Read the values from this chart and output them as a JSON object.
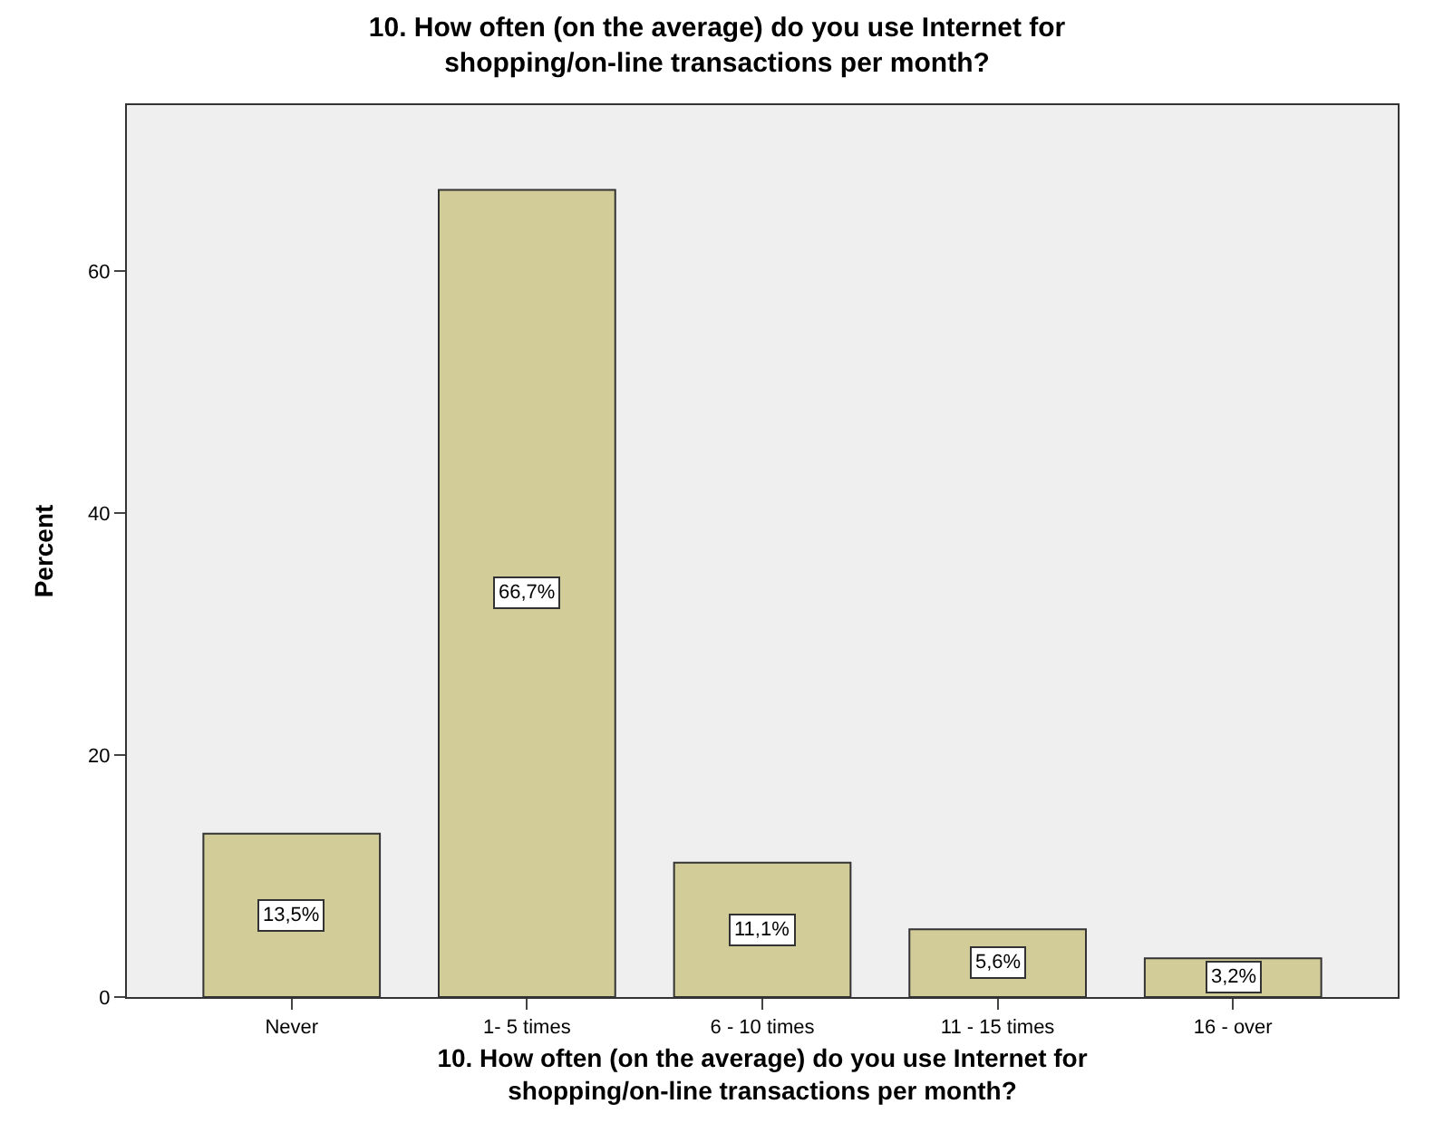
{
  "chart_data": {
    "type": "bar",
    "title": "10. How often (on the average) do you use Internet for shopping/on-line transactions per month?",
    "xlabel": "10. How often (on the average) do you use Internet for shopping/on-line transactions per month?",
    "ylabel": "Percent",
    "categories": [
      "Never",
      "1- 5 times",
      "6 - 10 times",
      "11 - 15 times",
      "16 - over"
    ],
    "values": [
      13.5,
      66.7,
      11.1,
      5.6,
      3.2
    ],
    "value_labels": [
      "13,5%",
      "66,7%",
      "11,1%",
      "5,6%",
      "3,2%"
    ],
    "color": "#d2cc98",
    "ylim": [
      0,
      73.7
    ],
    "yticks": [
      0,
      20,
      40,
      60
    ],
    "grid": false,
    "legend": false
  }
}
